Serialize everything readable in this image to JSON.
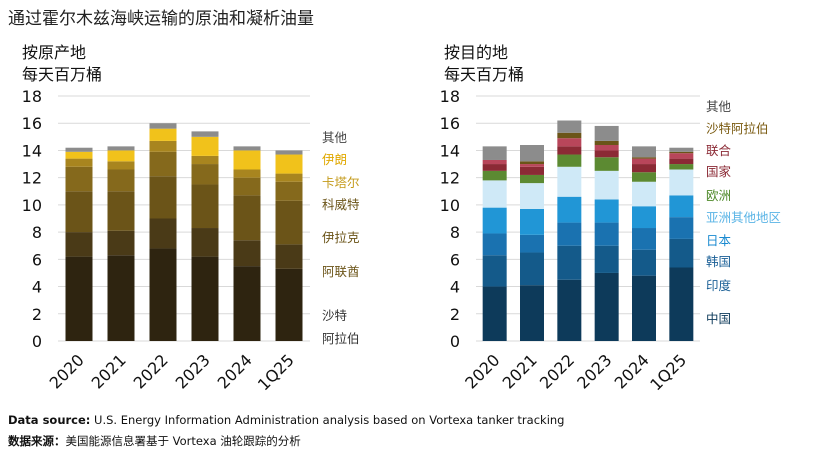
{
  "title": "通过霍尔木兹海峡运输的原油和凝析油量",
  "footer": {
    "source_label_en": "Data source:",
    "source_text_en": " U.S. Energy Information Administration analysis based on Vortexa tanker tracking",
    "source_label_zh": "数据来源：",
    "source_text_zh": "美国能源信息署基于 Vortexa 油轮跟踪的分析"
  },
  "chart_data": [
    {
      "type": "bar",
      "stacked": true,
      "subtitle_line1": "按原产地",
      "subtitle_line2": "每天百万桶",
      "categories": [
        "2020",
        "2021",
        "2022",
        "2023",
        "2024",
        "1Q25"
      ],
      "ylim": [
        0,
        18
      ],
      "yticks": [
        0,
        2,
        4,
        6,
        8,
        10,
        12,
        14,
        16,
        18
      ],
      "grid": true,
      "legend_position": "right",
      "series": [
        {
          "name": "沙特阿拉伯",
          "color": "#2e2410",
          "values": [
            6.2,
            6.3,
            6.8,
            6.2,
            5.5,
            5.3
          ]
        },
        {
          "name": "阿联酋",
          "color": "#4a3a17",
          "values": [
            1.8,
            1.8,
            2.2,
            2.1,
            1.9,
            1.8
          ]
        },
        {
          "name": "伊拉克",
          "color": "#6b5418",
          "values": [
            3.0,
            2.9,
            3.1,
            3.2,
            3.3,
            3.2
          ]
        },
        {
          "name": "科威特",
          "color": "#85691c",
          "values": [
            1.8,
            1.6,
            1.8,
            1.5,
            1.3,
            1.4
          ]
        },
        {
          "name": "卡塔尔",
          "color": "#a8851f",
          "values": [
            0.6,
            0.6,
            0.8,
            0.6,
            0.6,
            0.6
          ]
        },
        {
          "name": "伊朗",
          "color": "#f1c21b",
          "values": [
            0.5,
            0.8,
            0.9,
            1.4,
            1.4,
            1.4
          ]
        },
        {
          "name": "其他",
          "color": "#8c8c8c",
          "values": [
            0.3,
            0.3,
            0.4,
            0.4,
            0.3,
            0.3
          ]
        }
      ]
    },
    {
      "type": "bar",
      "stacked": true,
      "subtitle_line1": "按目的地",
      "subtitle_line2": "每天百万桶",
      "categories": [
        "2020",
        "2021",
        "2022",
        "2023",
        "2024",
        "1Q25"
      ],
      "ylim": [
        0,
        18
      ],
      "yticks": [
        0,
        2,
        4,
        6,
        8,
        10,
        12,
        14,
        16,
        18
      ],
      "grid": true,
      "legend_position": "right",
      "series": [
        {
          "name": "中国",
          "color": "#0d3a5a",
          "values": [
            4.0,
            4.1,
            4.5,
            5.0,
            4.8,
            5.4
          ]
        },
        {
          "name": "印度",
          "color": "#145a8a",
          "values": [
            2.3,
            2.4,
            2.5,
            2.0,
            1.9,
            2.1
          ]
        },
        {
          "name": "韩国",
          "color": "#1a72b0",
          "values": [
            1.6,
            1.3,
            1.7,
            1.7,
            1.6,
            1.6
          ]
        },
        {
          "name": "日本",
          "color": "#2196d6",
          "values": [
            1.9,
            1.9,
            1.9,
            1.7,
            1.6,
            1.6
          ]
        },
        {
          "name": "亚洲其他地区",
          "color": "#cfe9f7",
          "values": [
            2.0,
            1.9,
            2.2,
            2.1,
            1.8,
            1.9
          ]
        },
        {
          "name": "欧洲",
          "color": "#5c8a32",
          "values": [
            0.7,
            0.6,
            0.9,
            1.0,
            0.7,
            0.4
          ]
        },
        {
          "name": "国家",
          "color": "#8b2a35",
          "values": [
            0.5,
            0.6,
            0.6,
            0.5,
            0.6,
            0.4
          ]
        },
        {
          "name": "联合",
          "color": "#b8465a",
          "values": [
            0.3,
            0.2,
            0.6,
            0.4,
            0.4,
            0.4
          ]
        },
        {
          "name": "沙特阿拉伯",
          "color": "#6b5418",
          "values": [
            0.0,
            0.2,
            0.4,
            0.3,
            0.1,
            0.1
          ]
        },
        {
          "name": "其他",
          "color": "#8c8c8c",
          "values": [
            1.0,
            1.2,
            0.9,
            1.1,
            0.8,
            0.3
          ]
        }
      ]
    }
  ]
}
